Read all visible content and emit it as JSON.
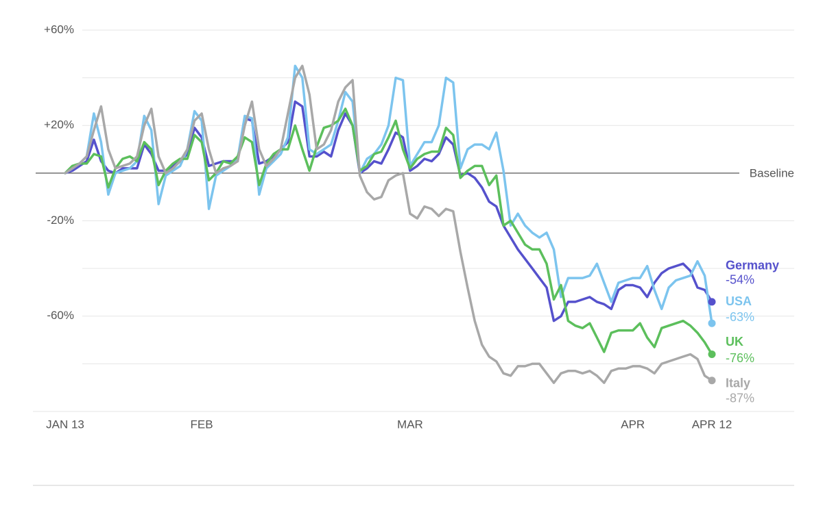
{
  "chart_data": {
    "type": "line",
    "categories": [
      "JAN 13",
      null,
      null,
      null,
      null,
      null,
      null,
      null,
      null,
      null,
      null,
      null,
      null,
      null,
      null,
      null,
      null,
      null,
      null,
      "FEB",
      null,
      null,
      null,
      null,
      null,
      null,
      null,
      null,
      null,
      null,
      null,
      null,
      null,
      null,
      null,
      null,
      null,
      null,
      null,
      null,
      null,
      null,
      null,
      null,
      null,
      null,
      null,
      null,
      "MAR",
      null,
      null,
      null,
      null,
      null,
      null,
      null,
      null,
      null,
      null,
      null,
      null,
      null,
      null,
      null,
      null,
      null,
      null,
      null,
      null,
      null,
      null,
      null,
      null,
      null,
      null,
      null,
      null,
      null,
      null,
      "APR",
      null,
      null,
      null,
      null,
      null,
      null,
      null,
      null,
      null,
      null,
      "APR 12"
    ],
    "ylim": [
      -100,
      60
    ],
    "yticks": [
      {
        "value": 60,
        "label": "+60%"
      },
      {
        "value": 20,
        "label": "+20%"
      },
      {
        "value": -20,
        "label": "-20%"
      },
      {
        "value": -60,
        "label": "-60%"
      }
    ],
    "grid_lines": [
      40,
      -40,
      -80,
      -100
    ],
    "baseline": {
      "value": 0,
      "label": "Baseline"
    },
    "grid": true,
    "series": [
      {
        "name": "Germany",
        "color": "#5551cc",
        "end_label": "-54%",
        "values": [
          0,
          1,
          3,
          5,
          14,
          5,
          1,
          0,
          2,
          2,
          2,
          12,
          8,
          1,
          1,
          3,
          5,
          8,
          19,
          15,
          3,
          4,
          5,
          5,
          5,
          23,
          22,
          4,
          5,
          7,
          10,
          13,
          30,
          28,
          7,
          7,
          9,
          7,
          18,
          25,
          20,
          0,
          2,
          5,
          4,
          10,
          17,
          15,
          1,
          3,
          6,
          5,
          8,
          15,
          12,
          -1,
          0,
          -2,
          -6,
          -12,
          -14,
          -22,
          -27,
          -32,
          -36,
          -40,
          -44,
          -48,
          -62,
          -60,
          -54,
          -54,
          -53,
          -52,
          -54,
          -55,
          -57,
          -49,
          -47,
          -47,
          -48,
          -52,
          -46,
          -42,
          -40,
          -39,
          -38,
          -41,
          -48,
          -49,
          -54
        ]
      },
      {
        "name": "USA",
        "color": "#7cc4ee",
        "end_label": "-63%",
        "values": [
          0,
          2,
          4,
          7,
          25,
          13,
          -9,
          0,
          1,
          2,
          5,
          24,
          18,
          -13,
          -1,
          1,
          3,
          10,
          26,
          22,
          -15,
          -1,
          1,
          3,
          6,
          24,
          23,
          -9,
          2,
          5,
          8,
          15,
          45,
          40,
          10,
          8,
          10,
          12,
          22,
          34,
          30,
          0,
          6,
          8,
          12,
          20,
          40,
          39,
          3,
          8,
          13,
          13,
          20,
          40,
          38,
          2,
          10,
          12,
          12,
          10,
          17,
          1,
          -22,
          -17,
          -22,
          -25,
          -27,
          -25,
          -32,
          -52,
          -44,
          -44,
          -44,
          -43,
          -38,
          -46,
          -54,
          -46,
          -45,
          -44,
          -44,
          -39,
          -49,
          -57,
          -48,
          -45,
          -44,
          -43,
          -37,
          -43,
          -63
        ]
      },
      {
        "name": "UK",
        "color": "#5cbf5c",
        "end_label": "-76%",
        "values": [
          0,
          3,
          4,
          4,
          8,
          7,
          -6,
          2,
          6,
          7,
          5,
          13,
          10,
          -5,
          1,
          4,
          6,
          6,
          16,
          13,
          -3,
          0,
          5,
          4,
          7,
          15,
          13,
          -5,
          4,
          8,
          10,
          10,
          20,
          10,
          1,
          11,
          19,
          20,
          22,
          27,
          20,
          1,
          3,
          8,
          9,
          15,
          22,
          10,
          2,
          6,
          8,
          9,
          9,
          19,
          16,
          -2,
          1,
          3,
          3,
          -5,
          -1,
          -22,
          -20,
          -25,
          -30,
          -32,
          -32,
          -38,
          -53,
          -47,
          -62,
          -64,
          -65,
          -63,
          -69,
          -75,
          -67,
          -66,
          -66,
          -66,
          -63,
          -69,
          -73,
          -65,
          -64,
          -63,
          -62,
          -64,
          -67,
          -71,
          -76
        ]
      },
      {
        "name": "Italy",
        "color": "#a8a8a8",
        "end_label": "-87%",
        "values": [
          0,
          2,
          4,
          7,
          18,
          28,
          10,
          2,
          3,
          4,
          7,
          20,
          27,
          7,
          0,
          2,
          5,
          10,
          22,
          25,
          10,
          0,
          2,
          3,
          5,
          20,
          30,
          10,
          3,
          6,
          10,
          25,
          40,
          45,
          33,
          10,
          12,
          18,
          30,
          36,
          39,
          -1,
          -8,
          -11,
          -10,
          -3,
          -1,
          0,
          -17,
          -19,
          -14,
          -15,
          -18,
          -15,
          -16,
          -33,
          -48,
          -62,
          -72,
          -77,
          -79,
          -84,
          -85,
          -81,
          -81,
          -80,
          -80,
          -84,
          -88,
          -84,
          -83,
          -83,
          -84,
          -83,
          -85,
          -88,
          -83,
          -82,
          -82,
          -81,
          -81,
          -82,
          -84,
          -80,
          -79,
          -78,
          -77,
          -76,
          -78,
          -85,
          -87
        ]
      }
    ]
  }
}
